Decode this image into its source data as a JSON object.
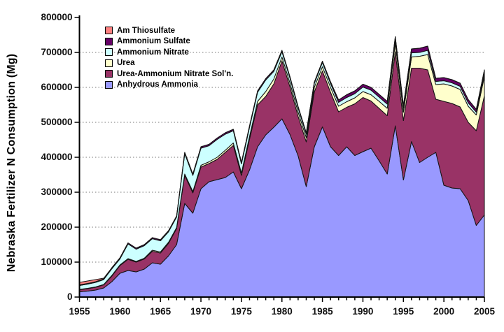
{
  "chart_data": {
    "type": "area",
    "subtype": "stacked",
    "title": "",
    "xlabel": "",
    "ylabel": "Nebraska Fertilizer N Consumption (Mg)",
    "ylim": [
      0,
      800000
    ],
    "y_ticks": [
      0,
      100000,
      200000,
      300000,
      400000,
      500000,
      600000,
      700000,
      800000
    ],
    "x_ticks": [
      1955,
      1960,
      1965,
      1970,
      1975,
      1980,
      1985,
      1990,
      1995,
      2000,
      2005
    ],
    "grid": "dotted horizontal gridlines at each 100000",
    "legend_position": "top-left inside plot",
    "legend_order_top_to_bottom": [
      "Am Thiosulfate",
      "Ammonium Sulfate",
      "Ammonium Nitrate",
      "Urea",
      "Urea-Ammonium Nitrate Sol'n.",
      "Anhydrous Ammonia"
    ],
    "x": [
      1955,
      1956,
      1957,
      1958,
      1959,
      1960,
      1961,
      1962,
      1963,
      1964,
      1965,
      1966,
      1967,
      1968,
      1969,
      1970,
      1971,
      1972,
      1973,
      1974,
      1975,
      1976,
      1977,
      1978,
      1979,
      1980,
      1981,
      1982,
      1983,
      1984,
      1985,
      1986,
      1987,
      1988,
      1989,
      1990,
      1991,
      1992,
      1993,
      1994,
      1995,
      1996,
      1997,
      1998,
      1999,
      2000,
      2001,
      2002,
      2003,
      2004,
      2005
    ],
    "series_stacked_bottom_to_top": [
      {
        "name": "Anhydrous Ammonia",
        "color": "#9999FF",
        "values": [
          15000,
          17000,
          20000,
          26000,
          44000,
          68000,
          76000,
          72000,
          80000,
          98000,
          94000,
          118000,
          150000,
          268000,
          240000,
          310000,
          330000,
          336000,
          342000,
          358000,
          310000,
          364000,
          430000,
          464000,
          486000,
          510000,
          465000,
          404000,
          316000,
          430000,
          487000,
          430000,
          405000,
          430000,
          405000,
          416000,
          426000,
          390000,
          352000,
          490000,
          335000,
          445000,
          385000,
          400000,
          414000,
          320000,
          312000,
          310000,
          276000,
          205000,
          235000
        ]
      },
      {
        "name": "Urea-Ammonium Nitrate Sol'n.",
        "color": "#993366",
        "values": [
          6000,
          7000,
          8000,
          9000,
          16000,
          22000,
          32000,
          28000,
          29000,
          33000,
          32000,
          36000,
          46000,
          80000,
          58000,
          62000,
          52000,
          58000,
          72000,
          76000,
          38000,
          88000,
          120000,
          110000,
          124000,
          166000,
          136000,
          113000,
          128000,
          157000,
          160000,
          156000,
          125000,
          113000,
          148000,
          155000,
          135000,
          150000,
          167000,
          212000,
          170000,
          210000,
          270000,
          250000,
          152000,
          240000,
          242000,
          234000,
          224000,
          271000,
          341000
        ]
      },
      {
        "name": "Urea",
        "color": "#FFFFCC",
        "values": [
          1000,
          1000,
          1000,
          1000,
          2000,
          2000,
          2000,
          2000,
          2000,
          3000,
          3000,
          3000,
          3000,
          4000,
          4000,
          5000,
          5000,
          6000,
          6000,
          7000,
          7000,
          8000,
          10000,
          14000,
          14000,
          11000,
          11000,
          12000,
          12000,
          13000,
          12000,
          14000,
          16000,
          16000,
          17000,
          17000,
          18000,
          20000,
          21000,
          24000,
          24000,
          32000,
          34000,
          44000,
          42000,
          50000,
          50000,
          50000,
          46000,
          45000,
          55000
        ]
      },
      {
        "name": "Ammonium Nitrate",
        "color": "#CCFFFF",
        "values": [
          11000,
          12000,
          13000,
          14000,
          19000,
          17000,
          42000,
          35000,
          36000,
          33000,
          32000,
          30000,
          30000,
          58000,
          46000,
          49000,
          46000,
          51000,
          46000,
          35000,
          26000,
          26000,
          26000,
          33000,
          22000,
          15000,
          14000,
          12000,
          10000,
          11000,
          12000,
          11000,
          11000,
          12000,
          12000,
          13000,
          13000,
          12000,
          12000,
          11000,
          11000,
          12000,
          11000,
          12000,
          9000,
          9000,
          9000,
          9000,
          10000,
          8000,
          10000
        ]
      },
      {
        "name": "Ammonium Sulfate",
        "color": "#660066",
        "values": [
          2000,
          2000,
          2000,
          2000,
          3000,
          3000,
          3000,
          3000,
          3000,
          3000,
          3000,
          3000,
          3000,
          4000,
          4000,
          4000,
          4000,
          4000,
          4000,
          4000,
          4000,
          4000,
          4000,
          4000,
          4000,
          4000,
          4000,
          4000,
          4000,
          4000,
          4000,
          5000,
          7000,
          8000,
          8000,
          8000,
          8000,
          8000,
          8000,
          8000,
          8000,
          11000,
          12000,
          12000,
          9000,
          9000,
          9000,
          9000,
          9000,
          8000,
          9000
        ]
      },
      {
        "name": "Am Thiosulfate",
        "color": "#FF8080",
        "values": [
          7000,
          7000,
          6000,
          2000,
          0,
          0,
          0,
          0,
          0,
          0,
          0,
          0,
          0,
          0,
          0,
          0,
          0,
          0,
          0,
          0,
          0,
          0,
          0,
          0,
          0,
          0,
          0,
          0,
          0,
          0,
          0,
          0,
          0,
          0,
          0,
          0,
          0,
          0,
          0,
          0,
          0,
          0,
          0,
          0,
          0,
          0,
          0,
          0,
          0,
          0,
          0
        ]
      }
    ]
  },
  "colors": {
    "axis": "#000000",
    "gridline": "#777777",
    "text": "#111111",
    "background": "#ffffff"
  }
}
